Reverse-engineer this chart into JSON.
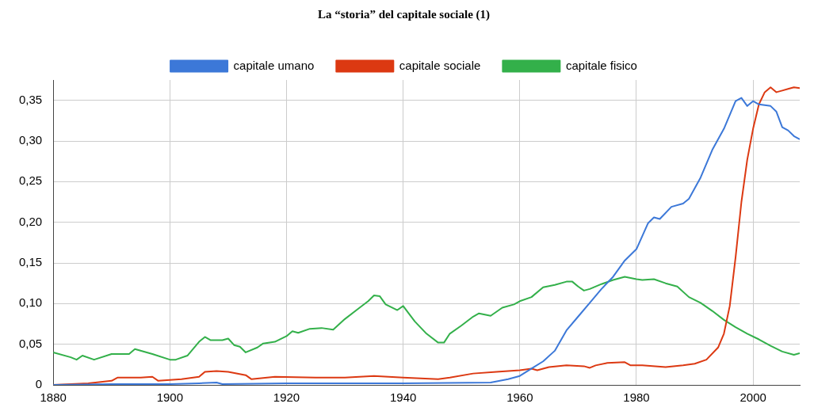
{
  "chart_data": {
    "type": "line",
    "title": "La “storia” del capitale sociale (1)",
    "legend": "top",
    "grid": true,
    "marker": "none",
    "line_style": "solid",
    "xlim": [
      1880,
      2008
    ],
    "xticks": [
      1880,
      1900,
      1920,
      1940,
      1960,
      1980,
      2000
    ],
    "ylim": [
      0,
      0.375
    ],
    "yticks": [
      0,
      {
        "value": 0.05,
        "label": "0,05"
      },
      {
        "value": 0.1,
        "label": "0,10"
      },
      {
        "value": 0.15,
        "label": "0,15"
      },
      {
        "value": 0.2,
        "label": "0,20"
      },
      {
        "value": 0.25,
        "label": "0,25"
      },
      {
        "value": 0.3,
        "label": "0,30"
      },
      {
        "value": 0.35,
        "label": "0,35"
      }
    ],
    "series": [
      {
        "name": "capitale umano",
        "color": "#3c78d8",
        "x": [
          1880,
          1890,
          1900,
          1905,
          1908,
          1909,
          1920,
          1940,
          1955,
          1958,
          1960,
          1962,
          1964,
          1966,
          1968,
          1970,
          1972,
          1974,
          1976,
          1978,
          1980,
          1982,
          1983,
          1984,
          1986,
          1988,
          1989,
          1991,
          1993,
          1995,
          1997,
          1998,
          1999,
          2000,
          2001,
          2003,
          2004,
          2005,
          2006,
          2007,
          2008
        ],
        "values": [
          0,
          0.001,
          0.001,
          0.002,
          0.003,
          0.001,
          0.002,
          0.002,
          0.003,
          0.007,
          0.011,
          0.02,
          0.029,
          0.042,
          0.067,
          0.084,
          0.101,
          0.118,
          0.133,
          0.153,
          0.167,
          0.199,
          0.206,
          0.204,
          0.219,
          0.223,
          0.229,
          0.255,
          0.289,
          0.315,
          0.349,
          0.353,
          0.343,
          0.349,
          0.345,
          0.343,
          0.336,
          0.317,
          0.313,
          0.306,
          0.302
        ]
      },
      {
        "name": "capitale sociale",
        "color": "#dc3912",
        "x": [
          1880,
          1886,
          1890,
          1891,
          1895,
          1897,
          1898,
          1902,
          1905,
          1906,
          1908,
          1910,
          1913,
          1914,
          1918,
          1925,
          1930,
          1935,
          1940,
          1946,
          1948,
          1952,
          1956,
          1960,
          1962,
          1963,
          1965,
          1968,
          1971,
          1972,
          1973,
          1975,
          1978,
          1979,
          1981,
          1985,
          1988,
          1990,
          1992,
          1994,
          1995,
          1996,
          1997,
          1998,
          1999,
          2000,
          2001,
          2002,
          2003,
          2004,
          2005,
          2006,
          2007,
          2008
        ],
        "values": [
          0,
          0.002,
          0.005,
          0.009,
          0.009,
          0.01,
          0.005,
          0.007,
          0.01,
          0.016,
          0.017,
          0.016,
          0.012,
          0.007,
          0.01,
          0.009,
          0.009,
          0.011,
          0.009,
          0.007,
          0.009,
          0.014,
          0.016,
          0.018,
          0.02,
          0.018,
          0.022,
          0.024,
          0.023,
          0.021,
          0.024,
          0.027,
          0.028,
          0.024,
          0.024,
          0.022,
          0.024,
          0.026,
          0.031,
          0.046,
          0.063,
          0.097,
          0.157,
          0.225,
          0.277,
          0.315,
          0.345,
          0.36,
          0.366,
          0.36,
          0.362,
          0.364,
          0.366,
          0.365
        ]
      },
      {
        "name": "capitale fisico",
        "color": "#33b04a",
        "x": [
          1880,
          1883,
          1884,
          1885,
          1887,
          1890,
          1893,
          1894,
          1897,
          1900,
          1901,
          1903,
          1905,
          1906,
          1907,
          1909,
          1910,
          1911,
          1912,
          1913,
          1915,
          1916,
          1918,
          1920,
          1921,
          1922,
          1924,
          1926,
          1928,
          1930,
          1932,
          1934,
          1935,
          1936,
          1937,
          1939,
          1940,
          1942,
          1944,
          1946,
          1947,
          1948,
          1950,
          1952,
          1953,
          1955,
          1957,
          1959,
          1960,
          1962,
          1964,
          1966,
          1968,
          1969,
          1970,
          1971,
          1972,
          1974,
          1976,
          1978,
          1980,
          1981,
          1983,
          1985,
          1987,
          1989,
          1991,
          1993,
          1995,
          1997,
          1999,
          2001,
          2003,
          2005,
          2007,
          2008
        ],
        "values": [
          0.04,
          0.034,
          0.031,
          0.036,
          0.031,
          0.038,
          0.038,
          0.044,
          0.038,
          0.031,
          0.031,
          0.036,
          0.053,
          0.059,
          0.055,
          0.055,
          0.057,
          0.049,
          0.047,
          0.04,
          0.046,
          0.051,
          0.053,
          0.06,
          0.066,
          0.064,
          0.069,
          0.07,
          0.068,
          0.081,
          0.092,
          0.103,
          0.11,
          0.109,
          0.099,
          0.092,
          0.097,
          0.078,
          0.063,
          0.052,
          0.052,
          0.063,
          0.073,
          0.084,
          0.088,
          0.085,
          0.095,
          0.099,
          0.103,
          0.108,
          0.12,
          0.123,
          0.127,
          0.127,
          0.121,
          0.116,
          0.118,
          0.124,
          0.129,
          0.133,
          0.13,
          0.129,
          0.13,
          0.125,
          0.121,
          0.108,
          0.101,
          0.091,
          0.08,
          0.071,
          0.063,
          0.056,
          0.048,
          0.041,
          0.037,
          0.039
        ]
      }
    ]
  }
}
